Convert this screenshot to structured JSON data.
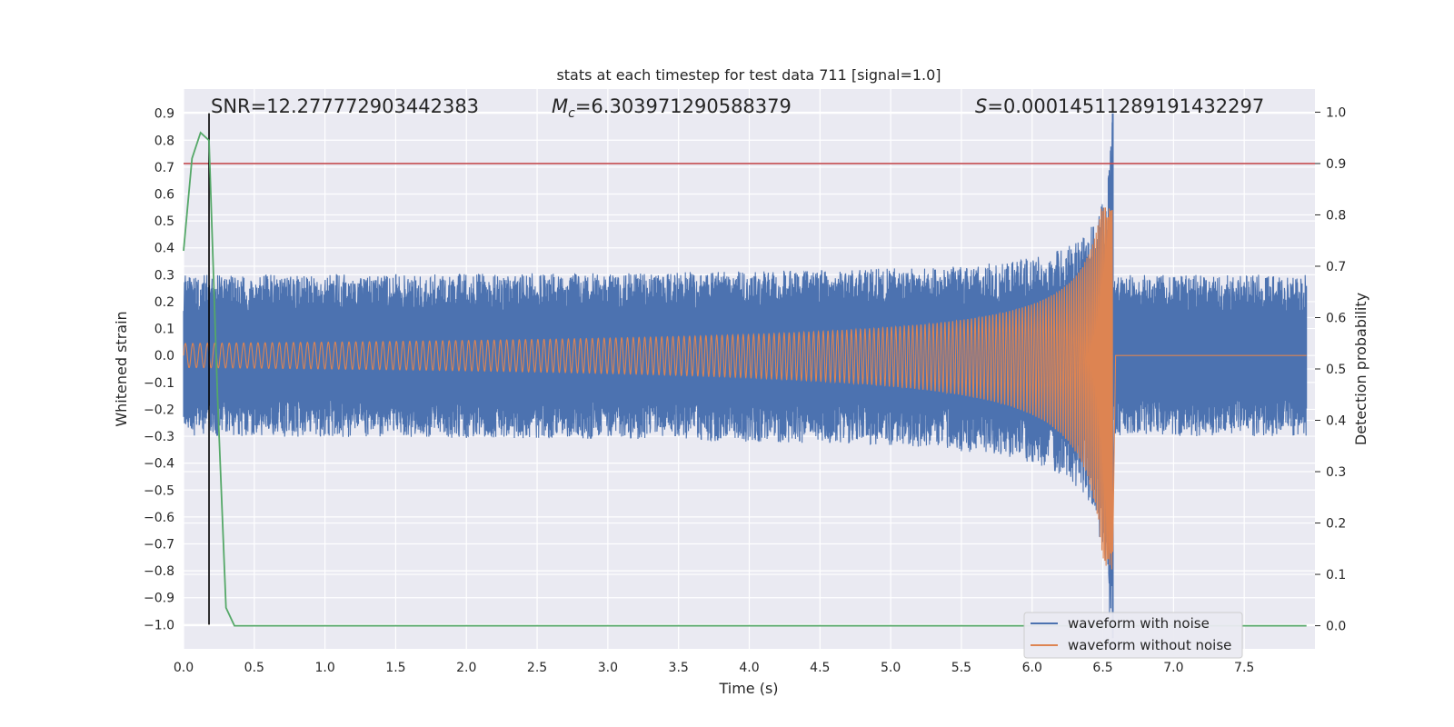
{
  "chart_data": {
    "type": "line",
    "title": "stats at each timestep for test data 711 [signal=1.0]",
    "xlabel": "Time (s)",
    "ylabel_left": "Whitened strain",
    "ylabel_right": "Detection probability",
    "xlim": [
      0.0,
      8.0
    ],
    "ylim_left": [
      -1.09,
      0.99
    ],
    "ylim_right": [
      -0.045,
      1.045
    ],
    "x_ticks": [
      "0.0",
      "0.5",
      "1.0",
      "1.5",
      "2.0",
      "2.5",
      "3.0",
      "3.5",
      "4.0",
      "4.5",
      "5.0",
      "5.5",
      "6.0",
      "6.5",
      "7.0",
      "7.5"
    ],
    "y_ticks_left": [
      "−1.0",
      "−0.9",
      "−0.8",
      "−0.7",
      "−0.6",
      "−0.5",
      "−0.4",
      "−0.3",
      "−0.2",
      "−0.1",
      "0.0",
      "0.1",
      "0.2",
      "0.3",
      "0.4",
      "0.5",
      "0.6",
      "0.7",
      "0.8",
      "0.9"
    ],
    "y_ticks_right": [
      "0.0",
      "0.1",
      "0.2",
      "0.3",
      "0.4",
      "0.5",
      "0.6",
      "0.7",
      "0.8",
      "0.9",
      "1.0"
    ],
    "annotations": {
      "snr": "SNR=12.277772903442383",
      "mc_symbol": "M",
      "mc_sub": "c",
      "mc_value": "=6.303971290588379",
      "s_symbol": "S",
      "s_value": "=0.00014511289191432297"
    },
    "threshold": {
      "value": 0.9,
      "axis": "right",
      "color": "#c44e52"
    },
    "marker_line": {
      "time": 0.18,
      "color": "#000000"
    },
    "coalescence_time": 6.57,
    "series": [
      {
        "name": "waveform with noise",
        "color": "#4c72b0",
        "axis": "left",
        "noise_envelope": {
          "base_top": 0.3,
          "base_bottom": -0.3,
          "peak_top": 0.9,
          "peak_bottom": -1.05
        }
      },
      {
        "name": "waveform without noise",
        "color": "#dd8452",
        "axis": "left",
        "chirp_envelope": {
          "start_amplitude": 0.045,
          "peak_top": 0.55,
          "peak_bottom": -0.8,
          "post_merger": 0.0
        }
      },
      {
        "name": "detection probability",
        "color": "#55a868",
        "axis": "right",
        "x": [
          0.0,
          0.06,
          0.12,
          0.18,
          0.24,
          0.3,
          0.36,
          7.94
        ],
        "y": [
          0.73,
          0.91,
          0.96,
          0.945,
          0.45,
          0.035,
          0.0,
          0.0
        ]
      }
    ],
    "legend": {
      "position": "lower-right",
      "entries": [
        "waveform with noise",
        "waveform without noise"
      ]
    }
  }
}
